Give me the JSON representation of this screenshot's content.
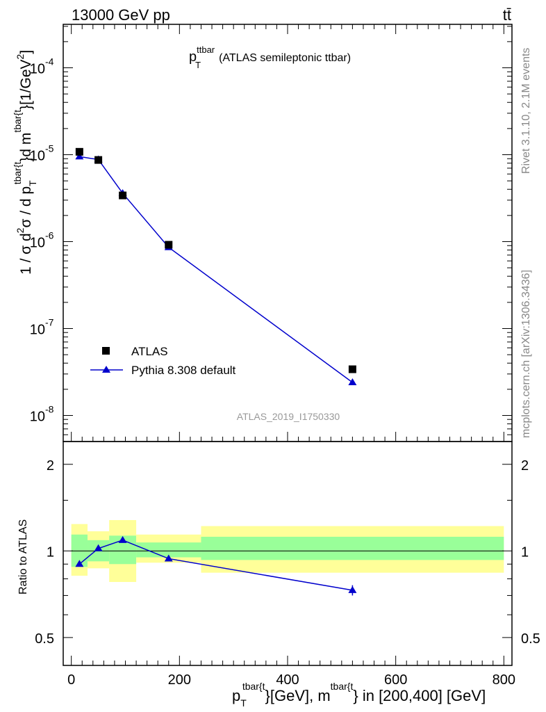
{
  "header": {
    "energy_label": "13000 GeV pp",
    "process_label": "tt̄"
  },
  "side_text": {
    "rivet": "Rivet 3.1.10,  2.1M events",
    "mcplots": "mcplots.cern.ch [arXiv:1306.3436]"
  },
  "watermark": "ATLAS_2019_I1750330",
  "chart_data": [
    {
      "type": "scatter",
      "panel": "main",
      "title_main": "p",
      "title_sup": "ttbar",
      "title_sub": "T",
      "title_rest": "(ATLAS semileptonic ttbar)",
      "ylabel_main": "1 / σ d",
      "ylabel_sup1": "2",
      "ylabel_mid": "σ /  d p",
      "ylabel_sub": "T",
      "ylabel_sup2": "tbar{t",
      "ylabel_mid2": "}d m",
      "ylabel_sup3": "tbar{t",
      "ylabel_end": "}[1/GeV",
      "ylabel_sup4": "2",
      "ylabel_close": "]",
      "yscale": "log",
      "xlim": [
        -15,
        815
      ],
      "ylim_log10": [
        -8.3,
        -3.5
      ],
      "y_tick_labels": [
        "10",
        "10",
        "10",
        "10",
        "10"
      ],
      "y_tick_exponents": [
        "-8",
        "-7",
        "-6",
        "-5",
        "-4"
      ],
      "y_tick_powers": [
        -8,
        -7,
        -6,
        -5,
        -4
      ],
      "legend_position": "middle-left",
      "series": [
        {
          "name": "ATLAS",
          "marker": "square",
          "color": "#000000",
          "x": [
            15,
            50,
            95,
            180,
            520
          ],
          "y": [
            1.08e-05,
            8.7e-06,
            3.4e-06,
            9.2e-07,
            3.4e-08
          ]
        },
        {
          "name": "Pythia 8.308 default",
          "marker": "triangle",
          "color": "#0000cc",
          "x": [
            15,
            50,
            95,
            180,
            520
          ],
          "y": [
            9.5e-06,
            8.8e-06,
            3.6e-06,
            8.6e-07,
            2.4e-08
          ]
        }
      ]
    },
    {
      "type": "line",
      "panel": "ratio",
      "ylabel": "Ratio to ATLAS",
      "xlabel_main": "p",
      "xlabel_sub": "T",
      "xlabel_sup1": "tbar{t",
      "xlabel_mid": "}[GeV], m",
      "xlabel_sup2": "tbar{t",
      "xlabel_end": "} in [200,400] [GeV]",
      "xlim": [
        -15,
        815
      ],
      "ylim": [
        0.4,
        2.4
      ],
      "x_ticks": [
        0,
        200,
        400,
        600,
        800
      ],
      "x_tick_labels": [
        "0",
        "200",
        "400",
        "600",
        "800"
      ],
      "y_ticks": [
        0.5,
        1,
        2
      ],
      "y_tick_labels": [
        "0.5",
        "1",
        "2"
      ],
      "bins": [
        {
          "x0": 0,
          "x1": 30,
          "green": [
            0.88,
            1.14
          ],
          "yellow": [
            0.82,
            1.24
          ]
        },
        {
          "x0": 30,
          "x1": 70,
          "green": [
            0.92,
            1.09
          ],
          "yellow": [
            0.87,
            1.17
          ]
        },
        {
          "x0": 70,
          "x1": 120,
          "green": [
            0.9,
            1.13
          ],
          "yellow": [
            0.78,
            1.28
          ]
        },
        {
          "x0": 120,
          "x1": 240,
          "green": [
            0.95,
            1.07
          ],
          "yellow": [
            0.91,
            1.14
          ]
        },
        {
          "x0": 240,
          "x1": 800,
          "green": [
            0.93,
            1.12
          ],
          "yellow": [
            0.84,
            1.22
          ]
        }
      ],
      "series": [
        {
          "name": "Pythia 8.308 default",
          "color": "#0000cc",
          "x": [
            15,
            50,
            95,
            180,
            520
          ],
          "y": [
            0.9,
            1.02,
            1.09,
            0.94,
            0.73
          ],
          "err": [
            0,
            0,
            0,
            0,
            0.03
          ]
        }
      ]
    }
  ]
}
